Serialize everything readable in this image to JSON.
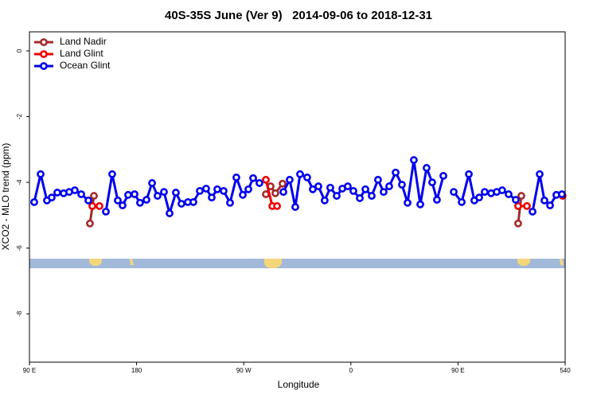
{
  "chart_data": {
    "type": "line",
    "title": "40S-35S June (Ver 9)   2014-09-06 to 2018-12-31",
    "x_label": "Longitude",
    "y_label": "XCO2 - MLO trend (ppm)",
    "xlim": [
      90,
      540
    ],
    "xticks": [
      {
        "value": 90,
        "label": "90 E"
      },
      180,
      {
        "value": 270,
        "label": "90 W"
      },
      {
        "value": 360,
        "label": "0"
      },
      {
        "value": 450,
        "label": "90 E"
      },
      540
    ],
    "ylim": [
      -9.47,
      0.58
    ],
    "yticks": [
      0,
      -2,
      -4,
      -6,
      -8
    ],
    "legend": "top-left",
    "series": [
      {
        "name": "Land Nadir",
        "color": "#a52a2a",
        "x": [
          140.8,
          144.2,
          null,
          288.6,
          292.6,
          296.6,
          302.6,
          null,
          500.5,
          503.2
        ],
        "values": [
          -5.25,
          -4.41,
          null,
          -4.36,
          -4.12,
          -4.33,
          -4.04,
          null,
          -5.25,
          -4.41
        ]
      },
      {
        "name": "Land Glint",
        "color": "#ee0000",
        "x": [
          142.8,
          148.8,
          null,
          288.6,
          294.0,
          298.0,
          null,
          500.5,
          507.9,
          null,
          537.9
        ],
        "values": [
          -4.72,
          -4.72,
          null,
          -3.92,
          -4.72,
          -4.72,
          null,
          -4.72,
          -4.72,
          null,
          -4.41
        ]
      },
      {
        "name": "Ocean Glint",
        "color": "#0000ee",
        "x": [
          94.0,
          99.4,
          104.7,
          108.7,
          113.4,
          118.7,
          123.4,
          128.1,
          133.5,
          139.5,
          null,
          154.2,
          159.5,
          164.2,
          168.2,
          172.9,
          178.3,
          182.9,
          188.3,
          193.0,
          197.6,
          203.0,
          207.7,
          213.0,
          217.7,
          223.1,
          227.7,
          233.1,
          238.4,
          243.1,
          247.8,
          253.1,
          258.5,
          263.8,
          269.2,
          273.9,
          277.9,
          283.2,
          null,
          303.3,
          308.6,
          313.3,
          317.3,
          323.3,
          328.0,
          332.7,
          338.0,
          342.7,
          348.1,
          352.8,
          357.4,
          362.1,
          367.5,
          372.2,
          377.5,
          382.8,
          387.5,
          392.2,
          397.6,
          402.9,
          407.6,
          412.9,
          418.3,
          423.6,
          428.3,
          432.3,
          437.7,
          null,
          446.4,
          453.1,
          459.1,
          463.7,
          467.8,
          472.4,
          477.8,
          482.5,
          487.1,
          492.5,
          498.5,
          null,
          512.6,
          518.6,
          522.6,
          527.3,
          532.6,
          537.3
        ],
        "values": [
          -4.6,
          -3.75,
          -4.55,
          -4.46,
          -4.31,
          -4.33,
          -4.29,
          -4.24,
          -4.36,
          -4.55,
          null,
          -4.89,
          -3.75,
          -4.55,
          -4.7,
          -4.38,
          -4.36,
          -4.62,
          -4.53,
          -4.02,
          -4.41,
          -4.29,
          -4.94,
          -4.31,
          -4.65,
          -4.6,
          -4.6,
          -4.26,
          -4.19,
          -4.46,
          -4.21,
          -4.26,
          -4.62,
          -3.85,
          -4.38,
          -4.21,
          -3.87,
          -4.02,
          null,
          -4.29,
          -3.92,
          -4.75,
          -3.75,
          -3.85,
          -4.21,
          -4.12,
          -4.55,
          -4.16,
          -4.41,
          -4.19,
          -4.12,
          -4.26,
          -4.48,
          -4.21,
          -4.41,
          -3.92,
          -4.29,
          -4.12,
          -3.7,
          -4.07,
          -4.62,
          -3.32,
          -4.67,
          -3.56,
          -4.0,
          -4.53,
          -3.8,
          null,
          -4.29,
          -4.6,
          -3.75,
          -4.55,
          -4.46,
          -4.29,
          -4.33,
          -4.29,
          -4.24,
          -4.36,
          -4.53,
          null,
          -4.89,
          -3.75,
          -4.55,
          -4.7,
          -4.38,
          -4.36
        ]
      }
    ]
  }
}
